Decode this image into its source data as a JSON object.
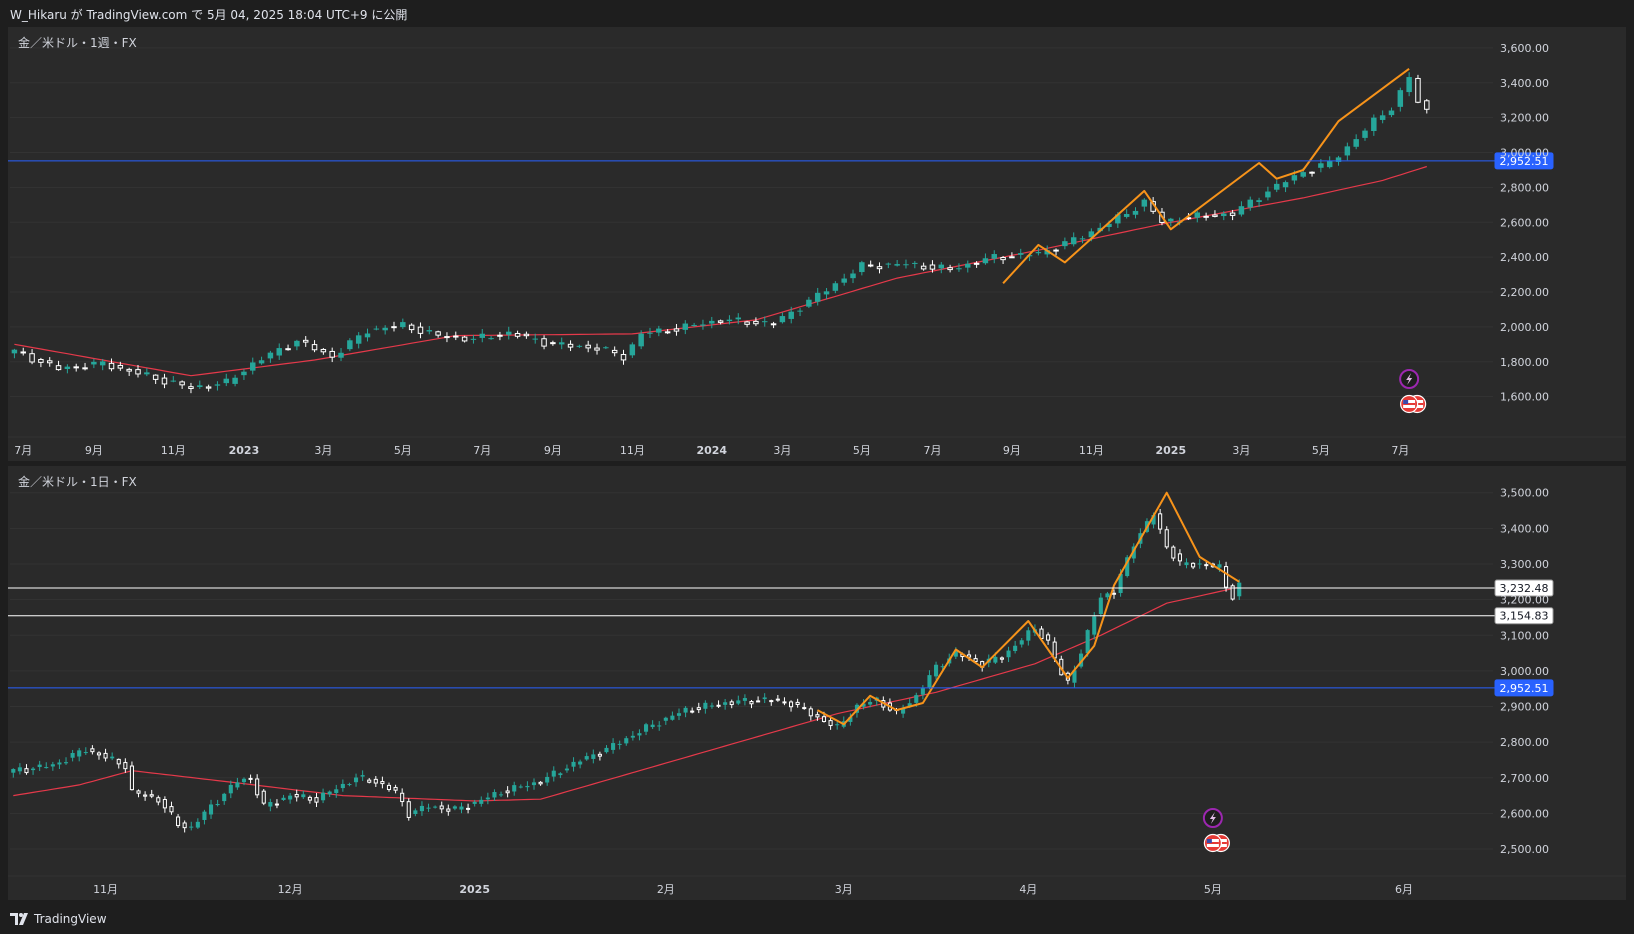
{
  "header": {
    "text": "W_Hikaru が TradingView.com で 5月 04, 2025 18:04 UTC+9 に公開"
  },
  "footer": {
    "brand": "TradingView",
    "logo_icon": "tradingview-logo-icon"
  },
  "colors": {
    "background": "#1e1e1e",
    "panel": "#2a2a2a",
    "bull": "#26a69a",
    "bear": "#ffffff",
    "ma_red": "#e5394a",
    "zigzag_orange": "#f7931a",
    "hline_blue": "#2962ff",
    "hline_white": "#ffffff",
    "event_purple": "#9c27b0"
  },
  "chart_data": [
    {
      "type": "candlestick",
      "panel_title": "金／米ドル・1週・FX",
      "symbol": "金／米ドル",
      "interval": "1週",
      "exchange": "FX",
      "y_ticks": [
        1600,
        1800,
        2000,
        2200,
        2400,
        2600,
        2800,
        3000,
        3200,
        3400,
        3600
      ],
      "y_tick_labels": [
        "1,600.00",
        "1,800.00",
        "2,000.00",
        "2,200.00",
        "2,400.00",
        "2,600.00",
        "2,800.00",
        "3,000.00",
        "3,200.00",
        "3,400.00",
        "3,600.00"
      ],
      "ylim": [
        1380,
        3720
      ],
      "x_tick_labels": [
        "7月",
        "9月",
        "11月",
        "2023",
        "3月",
        "5月",
        "7月",
        "9月",
        "11月",
        "2024",
        "3月",
        "5月",
        "7月",
        "9月",
        "11月",
        "2025",
        "3月",
        "5月",
        "7月"
      ],
      "x_tick_bold": [
        false,
        false,
        false,
        true,
        false,
        false,
        false,
        false,
        false,
        true,
        false,
        false,
        false,
        false,
        false,
        true,
        false,
        false,
        false
      ],
      "x_tick_index": [
        1,
        9,
        18,
        26,
        35,
        44,
        53,
        61,
        70,
        79,
        87,
        96,
        104,
        113,
        122,
        131,
        139,
        148,
        157
      ],
      "bars_visible": 168,
      "price_lines": [
        {
          "value": 2952.51,
          "label": "2,952.51",
          "color": "#2962ff"
        }
      ],
      "anchors": [
        [
          0,
          1860
        ],
        [
          5,
          1760
        ],
        [
          10,
          1790
        ],
        [
          15,
          1720
        ],
        [
          20,
          1650
        ],
        [
          24,
          1680
        ],
        [
          27,
          1790
        ],
        [
          32,
          1920
        ],
        [
          36,
          1830
        ],
        [
          40,
          1980
        ],
        [
          44,
          2010
        ],
        [
          48,
          1950
        ],
        [
          52,
          1930
        ],
        [
          56,
          1965
        ],
        [
          61,
          1900
        ],
        [
          66,
          1880
        ],
        [
          69,
          1830
        ],
        [
          71,
          1960
        ],
        [
          75,
          1990
        ],
        [
          80,
          2040
        ],
        [
          86,
          2020
        ],
        [
          91,
          2180
        ],
        [
          96,
          2350
        ],
        [
          101,
          2360
        ],
        [
          106,
          2330
        ],
        [
          111,
          2400
        ],
        [
          116,
          2420
        ],
        [
          121,
          2520
        ],
        [
          126,
          2650
        ],
        [
          128,
          2720
        ],
        [
          130,
          2600
        ],
        [
          133,
          2630
        ],
        [
          138,
          2650
        ],
        [
          142,
          2780
        ],
        [
          146,
          2890
        ],
        [
          149,
          2940
        ],
        [
          152,
          3080
        ],
        [
          154,
          3180
        ],
        [
          156,
          3260
        ],
        [
          158,
          3430
        ],
        [
          159,
          3290
        ],
        [
          160,
          3240
        ]
      ],
      "ma_anchors": [
        [
          0,
          1900
        ],
        [
          20,
          1720
        ],
        [
          34,
          1810
        ],
        [
          50,
          1950
        ],
        [
          70,
          1960
        ],
        [
          84,
          2040
        ],
        [
          100,
          2280
        ],
        [
          116,
          2440
        ],
        [
          130,
          2590
        ],
        [
          146,
          2740
        ],
        [
          155,
          2840
        ],
        [
          160,
          2920
        ]
      ],
      "zigzag": [
        [
          112,
          2250
        ],
        [
          116,
          2470
        ],
        [
          119,
          2370
        ],
        [
          128,
          2780
        ],
        [
          131,
          2560
        ],
        [
          141,
          2940
        ],
        [
          143,
          2850
        ],
        [
          146,
          2900
        ],
        [
          150,
          3180
        ],
        [
          158,
          3480
        ]
      ],
      "events": [
        {
          "bar": 158,
          "kind": "lightning",
          "icon": "lightning-icon"
        },
        {
          "bar": 158,
          "kind": "flag",
          "icon": "us-flag-icon"
        }
      ]
    },
    {
      "type": "candlestick",
      "panel_title": "金／米ドル・1日・FX",
      "symbol": "金／米ドル",
      "interval": "1日",
      "exchange": "FX",
      "y_ticks": [
        2500,
        2600,
        2700,
        2800,
        2900,
        3000,
        3100,
        3200,
        3300,
        3400,
        3500
      ],
      "y_tick_labels": [
        "2,500.00",
        "2,600.00",
        "2,700.00",
        "2,800.00",
        "2,900.00",
        "3,000.00",
        "3,100.00",
        "3,200.00",
        "3,300.00",
        "3,400.00",
        "3,500.00"
      ],
      "ylim": [
        2430,
        3575
      ],
      "x_tick_labels": [
        "11月",
        "12月",
        "2025",
        "2月",
        "3月",
        "4月",
        "5月",
        "6月"
      ],
      "x_tick_bold": [
        false,
        false,
        true,
        false,
        false,
        false,
        false,
        false
      ],
      "x_tick_index": [
        14,
        42,
        70,
        99,
        126,
        154,
        182,
        211
      ],
      "bars_visible": 225,
      "price_lines": [
        {
          "value": 3232.48,
          "label": "3,232.48",
          "color": "#ffffff"
        },
        {
          "value": 3154.83,
          "label": "3,154.83",
          "color": "#ffffff"
        },
        {
          "value": 2952.51,
          "label": "2,952.51",
          "color": "#2962ff"
        }
      ],
      "anchors": [
        [
          0,
          2720
        ],
        [
          6,
          2735
        ],
        [
          11,
          2780
        ],
        [
          17,
          2735
        ],
        [
          18,
          2660
        ],
        [
          22,
          2640
        ],
        [
          25,
          2570
        ],
        [
          27,
          2560
        ],
        [
          30,
          2620
        ],
        [
          34,
          2690
        ],
        [
          36,
          2700
        ],
        [
          38,
          2620
        ],
        [
          42,
          2650
        ],
        [
          46,
          2640
        ],
        [
          52,
          2700
        ],
        [
          55,
          2690
        ],
        [
          58,
          2660
        ],
        [
          60,
          2600
        ],
        [
          63,
          2620
        ],
        [
          67,
          2610
        ],
        [
          70,
          2630
        ],
        [
          74,
          2660
        ],
        [
          80,
          2690
        ],
        [
          85,
          2740
        ],
        [
          90,
          2780
        ],
        [
          96,
          2840
        ],
        [
          102,
          2890
        ],
        [
          108,
          2910
        ],
        [
          114,
          2920
        ],
        [
          118,
          2910
        ],
        [
          122,
          2870
        ],
        [
          125,
          2840
        ],
        [
          128,
          2900
        ],
        [
          131,
          2920
        ],
        [
          134,
          2880
        ],
        [
          137,
          2930
        ],
        [
          140,
          3010
        ],
        [
          143,
          3050
        ],
        [
          147,
          3020
        ],
        [
          150,
          3040
        ],
        [
          155,
          3120
        ],
        [
          157,
          3080
        ],
        [
          159,
          2990
        ],
        [
          160,
          2970
        ],
        [
          162,
          3050
        ],
        [
          165,
          3210
        ],
        [
          167,
          3220
        ],
        [
          170,
          3360
        ],
        [
          173,
          3440
        ],
        [
          175,
          3350
        ],
        [
          177,
          3300
        ],
        [
          180,
          3300
        ],
        [
          183,
          3290
        ],
        [
          184,
          3240
        ],
        [
          185,
          3210
        ],
        [
          186,
          3240
        ]
      ],
      "ma_anchors": [
        [
          0,
          2650
        ],
        [
          10,
          2680
        ],
        [
          18,
          2720
        ],
        [
          32,
          2690
        ],
        [
          50,
          2650
        ],
        [
          70,
          2635
        ],
        [
          80,
          2640
        ],
        [
          95,
          2720
        ],
        [
          110,
          2800
        ],
        [
          125,
          2880
        ],
        [
          140,
          2940
        ],
        [
          155,
          3020
        ],
        [
          165,
          3100
        ],
        [
          175,
          3190
        ],
        [
          186,
          3235
        ]
      ],
      "zigzag": [
        [
          122,
          2890
        ],
        [
          126,
          2850
        ],
        [
          130,
          2930
        ],
        [
          134,
          2890
        ],
        [
          138,
          2910
        ],
        [
          143,
          3060
        ],
        [
          147,
          3010
        ],
        [
          154,
          3140
        ],
        [
          160,
          2980
        ],
        [
          164,
          3070
        ],
        [
          167,
          3240
        ],
        [
          175,
          3500
        ],
        [
          180,
          3320
        ],
        [
          186,
          3250
        ]
      ],
      "events": [
        {
          "bar": 182,
          "kind": "lightning",
          "icon": "lightning-icon"
        },
        {
          "bar": 182,
          "kind": "flag",
          "icon": "us-flag-icon"
        }
      ]
    }
  ]
}
